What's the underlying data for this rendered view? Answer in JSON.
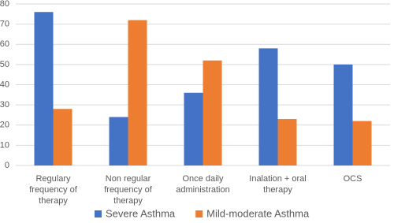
{
  "chart_data": {
    "type": "bar",
    "categories": [
      "Regulary frequency of therapy",
      "Non regular frequency of therapy",
      "Once daily administration",
      "Inalation + oral therapy",
      "OCS"
    ],
    "series": [
      {
        "name": "Severe Asthma",
        "color": "#4472c4",
        "values": [
          76,
          24,
          36,
          58,
          50
        ]
      },
      {
        "name": "Mild-moderate Asthma",
        "color": "#ed7d31",
        "values": [
          28,
          72,
          52,
          23,
          22
        ]
      }
    ],
    "ylim": [
      0,
      80
    ],
    "yticks": [
      0,
      10,
      20,
      30,
      40,
      50,
      60,
      70,
      80
    ],
    "grid": true,
    "legend": "bottom"
  }
}
